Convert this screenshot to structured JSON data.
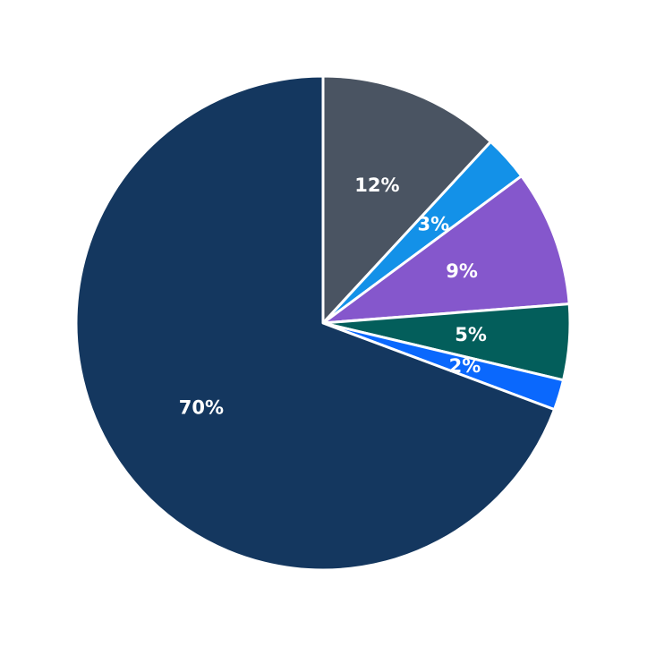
{
  "chart_data": {
    "type": "pie",
    "start_angle_deg": 90,
    "direction": "clockwise",
    "slices": [
      {
        "label": "12%",
        "value": 12,
        "color": "#4a5462"
      },
      {
        "label": "3%",
        "value": 3,
        "color": "#1391e8"
      },
      {
        "label": "9%",
        "value": 9,
        "color": "#8557cc"
      },
      {
        "label": "5%",
        "value": 5,
        "color": "#035e5b"
      },
      {
        "label": "2%",
        "value": 2,
        "color": "#0a68fd"
      },
      {
        "label": "70%",
        "value": 70,
        "color": "#14375f"
      }
    ],
    "legend": "none"
  }
}
